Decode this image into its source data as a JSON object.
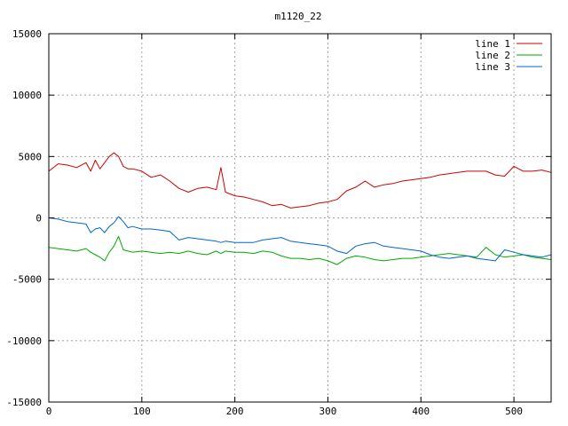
{
  "chart_data": {
    "type": "line",
    "title": "m1120_22",
    "xlabel": "",
    "ylabel": "",
    "xlim": [
      0,
      540
    ],
    "ylim": [
      -15000,
      15000
    ],
    "xticks": [
      0,
      100,
      200,
      300,
      400,
      500
    ],
    "xtick_labels": [
      "0",
      "100",
      "200",
      "300",
      "400",
      "500"
    ],
    "yticks": [
      -15000,
      -10000,
      -5000,
      0,
      5000,
      10000,
      15000
    ],
    "ytick_labels": [
      "-15000",
      "-10000",
      "-5000",
      "0",
      "5000",
      "10000",
      "15000"
    ],
    "grid": true,
    "legend_position": "top-right",
    "x": [
      0,
      10,
      20,
      30,
      40,
      45,
      50,
      55,
      60,
      65,
      70,
      75,
      80,
      85,
      90,
      100,
      110,
      120,
      130,
      140,
      150,
      160,
      170,
      180,
      185,
      190,
      200,
      210,
      220,
      230,
      240,
      250,
      260,
      270,
      280,
      290,
      300,
      310,
      320,
      330,
      340,
      350,
      360,
      370,
      380,
      390,
      400,
      410,
      420,
      430,
      440,
      450,
      460,
      470,
      480,
      490,
      500,
      510,
      520,
      530,
      540
    ],
    "series": [
      {
        "name": "line 1",
        "color": "#cc0000",
        "values": [
          3800,
          4400,
          4300,
          4100,
          4500,
          3800,
          4700,
          4000,
          4500,
          5000,
          5300,
          5000,
          4200,
          4000,
          4000,
          3800,
          3300,
          3500,
          3000,
          2400,
          2100,
          2400,
          2500,
          2300,
          4100,
          2100,
          1800,
          1700,
          1500,
          1300,
          1000,
          1100,
          800,
          900,
          1000,
          1200,
          1300,
          1500,
          2200,
          2500,
          3000,
          2500,
          2700,
          2800,
          3000,
          3100,
          3200,
          3300,
          3500,
          3600,
          3700,
          3800,
          3800,
          3800,
          3500,
          3400,
          4200,
          3800,
          3800,
          3900,
          3700
        ]
      },
      {
        "name": "line 2",
        "color": "#00aa00",
        "values": [
          -2400,
          -2500,
          -2600,
          -2700,
          -2500,
          -2800,
          -3000,
          -3200,
          -3500,
          -2800,
          -2300,
          -1500,
          -2600,
          -2700,
          -2800,
          -2700,
          -2800,
          -2900,
          -2800,
          -2900,
          -2700,
          -2900,
          -3000,
          -2700,
          -2900,
          -2700,
          -2800,
          -2800,
          -2900,
          -2700,
          -2800,
          -3100,
          -3300,
          -3300,
          -3400,
          -3300,
          -3500,
          -3800,
          -3300,
          -3100,
          -3200,
          -3400,
          -3500,
          -3400,
          -3300,
          -3300,
          -3200,
          -3100,
          -3000,
          -2900,
          -3000,
          -3100,
          -3200,
          -2400,
          -3000,
          -3200,
          -3100,
          -3000,
          -3200,
          -3300,
          -3400
        ]
      },
      {
        "name": "line 3",
        "color": "#0066cc",
        "values": [
          0,
          -100,
          -300,
          -400,
          -500,
          -1200,
          -900,
          -800,
          -1200,
          -700,
          -400,
          100,
          -300,
          -800,
          -700,
          -900,
          -900,
          -1000,
          -1100,
          -1800,
          -1600,
          -1700,
          -1800,
          -1900,
          -2000,
          -1900,
          -2000,
          -2000,
          -2000,
          -1800,
          -1700,
          -1600,
          -1900,
          -2000,
          -2100,
          -2200,
          -2300,
          -2700,
          -2900,
          -2300,
          -2100,
          -2000,
          -2300,
          -2400,
          -2500,
          -2600,
          -2700,
          -3000,
          -3200,
          -3300,
          -3200,
          -3100,
          -3300,
          -3400,
          -3500,
          -2600,
          -2800,
          -3000,
          -3100,
          -3200,
          -3000
        ]
      }
    ]
  }
}
